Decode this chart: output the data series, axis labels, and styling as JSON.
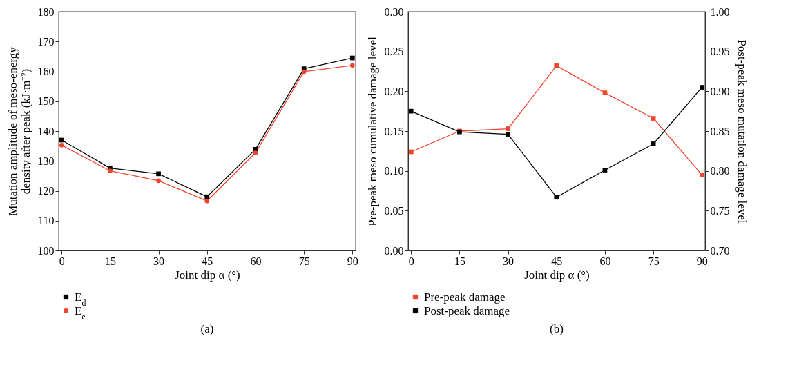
{
  "chart_data": [
    {
      "type": "line",
      "xlabel": "Joint dip α (°)",
      "ylabel": "Mutation amplitude of meso-energy density after peak (kJ·m⁻²)",
      "x": [
        0,
        15,
        30,
        45,
        60,
        75,
        90
      ],
      "series": [
        {
          "name": "E$_{d}$",
          "color": "#000000",
          "marker": "square",
          "values": [
            137,
            127.6,
            125.7,
            118,
            133.9,
            160.9,
            164.5
          ]
        },
        {
          "name": "E$_{e}$",
          "color": "#f0442c",
          "marker": "circle",
          "values": [
            135.3,
            126.7,
            123.4,
            116.6,
            132.7,
            159.9,
            162
          ]
        }
      ],
      "xlim": [
        -0.9,
        91
      ],
      "xticks": [
        0,
        15,
        30,
        45,
        60,
        75,
        90
      ],
      "ylim": [
        100,
        180
      ],
      "yticks": [
        100,
        110,
        120,
        130,
        140,
        150,
        160,
        170,
        180
      ],
      "grid": false,
      "legend": "bottom left",
      "annotations": [
        "(a)"
      ]
    },
    {
      "type": "line",
      "xlabel": "Joint dip α (°)",
      "ylabel": "Pre-peak meso cumulative damage level",
      "y2label": "Post-peak meso mutation damage level",
      "x": [
        0,
        15,
        30,
        45,
        60,
        75,
        90
      ],
      "series": [
        {
          "name": "Pre-peak damage",
          "color": "#f0442c",
          "marker": "square",
          "values": [
            0.124,
            0.15,
            0.153,
            0.232,
            0.198,
            0.166,
            0.095
          ]
        },
        {
          "name": "Post-peak damage",
          "color": "#000000",
          "marker": "square",
          "axis": "y2",
          "values": [
            0.875,
            0.849,
            0.846,
            0.767,
            0.801,
            0.834,
            0.905
          ]
        }
      ],
      "xlim": [
        -0.9,
        91
      ],
      "xticks": [
        0,
        15,
        30,
        45,
        60,
        75,
        90
      ],
      "ylim": [
        0,
        0.3
      ],
      "yticks": [
        {
          "value": 0,
          "label": "0.00"
        },
        0.05,
        {
          "value": 0.1,
          "label": "0.10"
        },
        0.15,
        {
          "value": 0.2,
          "label": "0.20"
        },
        0.25,
        {
          "value": 0.3,
          "label": "0.30"
        }
      ],
      "y2lim": [
        0.7,
        1.0
      ],
      "y2ticks": [
        {
          "value": 0.7,
          "label": "0.70"
        },
        0.75,
        {
          "value": 0.8,
          "label": "0.80"
        },
        0.85,
        {
          "value": 0.9,
          "label": "0.90"
        },
        0.95,
        {
          "value": 1.0,
          "label": "1.00"
        }
      ],
      "grid": false,
      "legend": "bottom left",
      "annotations": [
        "(b)"
      ]
    }
  ]
}
